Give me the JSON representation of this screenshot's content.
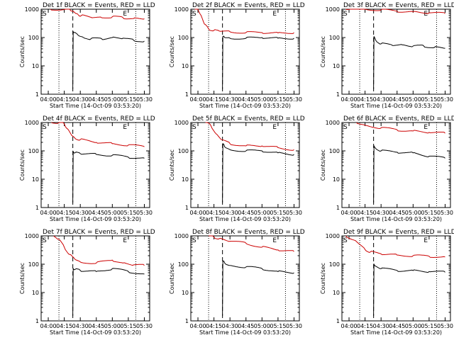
{
  "chart_data": [
    {
      "type": "line",
      "title": "Det 1f BLACK = Events, RED = LLD",
      "xlabel": "Start Time (14-Oct-09 03:53:20)",
      "ylabel": "Counts/sec",
      "x_ticks": [
        "04:00",
        "04:15",
        "04:30",
        "04:45",
        "05:00",
        "05:15",
        "05:30"
      ],
      "y_ticks": [
        "1",
        "10",
        "100",
        "1000"
      ],
      "ylim": [
        1,
        1000
      ],
      "yscale": "log",
      "markers": [
        "S",
        "E"
      ],
      "series": [
        {
          "color": "#cc0000",
          "x": [
            "04:02",
            "04:16",
            "04:20",
            "04:23",
            "04:26",
            "04:28",
            "04:31",
            "04:40",
            "04:50",
            "05:00",
            "05:10",
            "05:20",
            "05:30"
          ],
          "y": [
            1100,
            1100,
            1000,
            850,
            700,
            640,
            600,
            520,
            500,
            540,
            500,
            470,
            460
          ]
        },
        {
          "color": "#000000",
          "x": [
            "04:23",
            "04:23.4",
            "04:24",
            "04:28",
            "04:33",
            "04:40",
            "04:50",
            "05:00",
            "05:10",
            "05:20",
            "05:30"
          ],
          "y": [
            1.5,
            160,
            150,
            120,
            100,
            90,
            90,
            100,
            95,
            80,
            75
          ]
        }
      ]
    },
    {
      "type": "line",
      "title": "Det 2f BLACK = Events, RED = LLD",
      "xlabel": "Start Time (14-Oct-09 03:53:20)",
      "ylabel": "Counts/sec",
      "x_ticks": [
        "04:00",
        "04:15",
        "04:30",
        "04:45",
        "05:00",
        "05:15",
        "05:30"
      ],
      "y_ticks": [
        "1",
        "10",
        "100",
        "1000"
      ],
      "ylim": [
        1,
        1000
      ],
      "yscale": "log",
      "markers": [
        "S",
        "E"
      ],
      "series": [
        {
          "color": "#cc0000",
          "x": [
            "03:57",
            "04:00",
            "04:03",
            "04:06",
            "04:10",
            "04:15",
            "04:20",
            "04:30",
            "04:45",
            "05:00",
            "05:15",
            "05:30"
          ],
          "y": [
            1100,
            1000,
            600,
            300,
            200,
            180,
            170,
            160,
            150,
            150,
            145,
            150
          ]
        },
        {
          "color": "#000000",
          "x": [
            "04:23",
            "04:23.4",
            "04:25",
            "04:30",
            "04:45",
            "05:00",
            "05:15",
            "05:30"
          ],
          "y": [
            1.5,
            110,
            100,
            95,
            95,
            100,
            95,
            95
          ]
        }
      ]
    },
    {
      "type": "line",
      "title": "Det 3f BLACK = Events, RED = LLD",
      "xlabel": "Start Time (14-Oct-09 03:53:20)",
      "ylabel": "Counts/sec",
      "x_ticks": [
        "04:00",
        "04:15",
        "04:30",
        "04:45",
        "05:00",
        "05:15",
        "05:30"
      ],
      "y_ticks": [
        "1",
        "10",
        "100",
        "1000"
      ],
      "ylim": [
        1,
        1000
      ],
      "yscale": "log",
      "markers": [
        "S",
        "E"
      ],
      "series": [
        {
          "color": "#cc0000",
          "x": [
            "03:57",
            "04:15",
            "04:30",
            "04:45",
            "05:00",
            "05:15",
            "05:30"
          ],
          "y": [
            1050,
            1000,
            950,
            850,
            800,
            750,
            700
          ]
        },
        {
          "color": "#000000",
          "x": [
            "04:23",
            "04:23.4",
            "04:25",
            "04:30",
            "04:40",
            "04:50",
            "05:00",
            "05:10",
            "05:20",
            "05:30"
          ],
          "y": [
            1.5,
            110,
            80,
            60,
            55,
            55,
            50,
            50,
            45,
            42
          ]
        }
      ]
    },
    {
      "type": "line",
      "title": "Det 4f BLACK = Events, RED = LLD",
      "xlabel": "Start Time (14-Oct-09 03:53:20)",
      "ylabel": "Counts/sec",
      "x_ticks": [
        "04:00",
        "04:15",
        "04:30",
        "04:45",
        "05:00",
        "05:15",
        "05:30"
      ],
      "y_ticks": [
        "1",
        "10",
        "100",
        "1000"
      ],
      "ylim": [
        1,
        1000
      ],
      "yscale": "log",
      "markers": [
        "S",
        "E"
      ],
      "series": [
        {
          "color": "#cc0000",
          "x": [
            "04:03",
            "04:10",
            "04:15",
            "04:18",
            "04:22",
            "04:25",
            "04:30",
            "04:45",
            "05:00",
            "05:15",
            "05:30"
          ],
          "y": [
            1100,
            1050,
            900,
            600,
            350,
            280,
            250,
            200,
            180,
            160,
            140
          ]
        },
        {
          "color": "#000000",
          "x": [
            "04:23",
            "04:23.4",
            "04:25",
            "04:30",
            "04:45",
            "05:00",
            "05:15",
            "05:30"
          ],
          "y": [
            1.5,
            95,
            85,
            80,
            75,
            70,
            60,
            55
          ]
        }
      ]
    },
    {
      "type": "line",
      "title": "Det 5f BLACK = Events, RED = LLD",
      "xlabel": "Start Time (14-Oct-09 03:53:20)",
      "ylabel": "Counts/sec",
      "x_ticks": [
        "04:00",
        "04:15",
        "04:30",
        "04:45",
        "05:00",
        "05:15",
        "05:30"
      ],
      "y_ticks": [
        "1",
        "10",
        "100",
        "1000"
      ],
      "ylim": [
        1,
        1000
      ],
      "yscale": "log",
      "markers": [
        "S",
        "E"
      ],
      "series": [
        {
          "color": "#cc0000",
          "x": [
            "04:07",
            "04:12",
            "04:17",
            "04:22",
            "04:30",
            "04:45",
            "05:00",
            "05:15",
            "05:30"
          ],
          "y": [
            1100,
            800,
            400,
            250,
            180,
            150,
            150,
            130,
            110
          ]
        },
        {
          "color": "#000000",
          "x": [
            "04:23",
            "04:23.4",
            "04:25",
            "04:30",
            "04:45",
            "05:00",
            "05:15",
            "05:30"
          ],
          "y": [
            1.5,
            180,
            140,
            110,
            100,
            100,
            85,
            75
          ]
        }
      ]
    },
    {
      "type": "line",
      "title": "Det 6f BLACK = Events, RED = LLD",
      "xlabel": "Start Time (14-Oct-09 03:53:20)",
      "ylabel": "Counts/sec",
      "x_ticks": [
        "04:00",
        "04:15",
        "04:30",
        "04:45",
        "05:00",
        "05:15",
        "05:30"
      ],
      "y_ticks": [
        "1",
        "10",
        "100",
        "1000"
      ],
      "ylim": [
        1,
        1000
      ],
      "yscale": "log",
      "markers": [
        "S",
        "E"
      ],
      "series": [
        {
          "color": "#cc0000",
          "x": [
            "04:07",
            "04:15",
            "04:30",
            "04:45",
            "05:00",
            "05:15",
            "05:30"
          ],
          "y": [
            1000,
            800,
            650,
            550,
            500,
            450,
            420
          ]
        },
        {
          "color": "#000000",
          "x": [
            "04:23",
            "04:23.4",
            "04:25",
            "04:30",
            "04:45",
            "05:00",
            "05:15",
            "05:30"
          ],
          "y": [
            1.5,
            150,
            120,
            100,
            90,
            85,
            65,
            55
          ]
        }
      ]
    },
    {
      "type": "line",
      "title": "Det 7f BLACK = Events, RED = LLD",
      "xlabel": "Start Time (14-Oct-09 03:53:20)",
      "ylabel": "Counts/sec",
      "x_ticks": [
        "04:00",
        "04:15",
        "04:30",
        "04:45",
        "05:00",
        "05:15",
        "05:30"
      ],
      "y_ticks": [
        "1",
        "10",
        "100",
        "1000"
      ],
      "ylim": [
        1,
        1000
      ],
      "yscale": "log",
      "markers": [
        "S",
        "E"
      ],
      "series": [
        {
          "color": "#cc0000",
          "x": [
            "04:05",
            "04:10",
            "04:15",
            "04:20",
            "04:25",
            "04:30",
            "04:45",
            "05:00",
            "05:10",
            "05:20",
            "05:30"
          ],
          "y": [
            1000,
            750,
            400,
            220,
            150,
            120,
            110,
            140,
            110,
            95,
            90
          ]
        },
        {
          "color": "#000000",
          "x": [
            "04:23",
            "04:23.4",
            "04:25",
            "04:30",
            "04:45",
            "05:00",
            "05:15",
            "05:30"
          ],
          "y": [
            1.5,
            70,
            65,
            60,
            55,
            70,
            55,
            45
          ]
        }
      ]
    },
    {
      "type": "line",
      "title": "Det 8f BLACK = Events, RED = LLD",
      "xlabel": "Start Time (14-Oct-09 03:53:20)",
      "ylabel": "Counts/sec",
      "x_ticks": [
        "04:00",
        "04:15",
        "04:30",
        "04:45",
        "05:00",
        "05:15",
        "05:30"
      ],
      "y_ticks": [
        "1",
        "10",
        "100",
        "1000"
      ],
      "ylim": [
        1,
        1000
      ],
      "yscale": "log",
      "markers": [
        "S",
        "E"
      ],
      "series": [
        {
          "color": "#cc0000",
          "x": [
            "04:10",
            "04:15",
            "04:20",
            "04:30",
            "04:45",
            "05:00",
            "05:15",
            "05:30"
          ],
          "y": [
            1100,
            900,
            800,
            650,
            550,
            400,
            320,
            280
          ]
        },
        {
          "color": "#000000",
          "x": [
            "04:23",
            "04:23.4",
            "04:25",
            "04:30",
            "04:45",
            "05:00",
            "05:15",
            "05:30"
          ],
          "y": [
            1.5,
            130,
            110,
            90,
            80,
            70,
            55,
            50
          ]
        }
      ]
    },
    {
      "type": "line",
      "title": "Det 9f BLACK = Events, RED = LLD",
      "xlabel": "Start Time (14-Oct-09 03:53:20)",
      "ylabel": "Counts/sec",
      "x_ticks": [
        "04:00",
        "04:15",
        "04:30",
        "04:45",
        "05:00",
        "05:15",
        "05:30"
      ],
      "y_ticks": [
        "1",
        "10",
        "100",
        "1000"
      ],
      "ylim": [
        1,
        1000
      ],
      "yscale": "log",
      "markers": [
        "S",
        "E"
      ],
      "series": [
        {
          "color": "#cc0000",
          "x": [
            "03:57",
            "04:05",
            "04:10",
            "04:15",
            "04:20",
            "04:30",
            "04:45",
            "05:00",
            "05:15",
            "05:30"
          ],
          "y": [
            1100,
            700,
            500,
            330,
            270,
            230,
            210,
            200,
            190,
            180
          ]
        },
        {
          "color": "#000000",
          "x": [
            "04:23",
            "04:23.4",
            "04:25",
            "04:30",
            "04:45",
            "05:00",
            "05:15",
            "05:30"
          ],
          "y": [
            1.5,
            100,
            85,
            70,
            60,
            60,
            55,
            52
          ]
        }
      ]
    }
  ]
}
